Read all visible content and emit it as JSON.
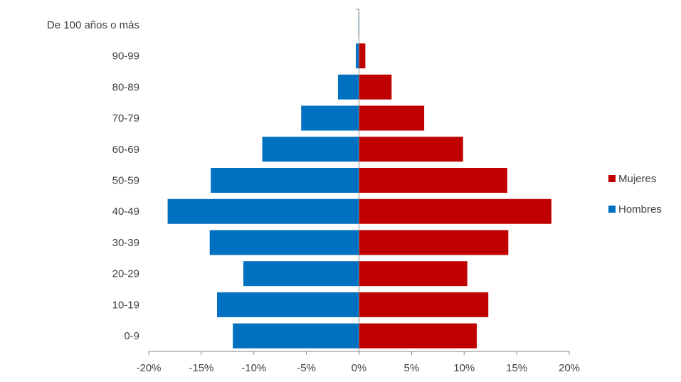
{
  "chart_data": {
    "type": "bar",
    "orientation": "horizontal",
    "stacked_diverging": true,
    "categories": [
      "0-9",
      "10-19",
      "20-29",
      "30-39",
      "40-49",
      "50-59",
      "60-69",
      "70-79",
      "80-89",
      "90-99",
      "De 100 años o más"
    ],
    "series": [
      {
        "name": "Mujeres",
        "color": "#c00000",
        "values": [
          11.2,
          12.3,
          10.3,
          14.2,
          18.3,
          14.1,
          9.9,
          6.2,
          3.1,
          0.6,
          0.0
        ]
      },
      {
        "name": "Hombres",
        "color": "#0070c0",
        "values": [
          -12.0,
          -13.5,
          -11.0,
          -14.2,
          -18.2,
          -14.1,
          -9.2,
          -5.5,
          -2.0,
          -0.3,
          -0.05
        ]
      }
    ],
    "xlim": [
      -20,
      20
    ],
    "xticks": [
      -20,
      -15,
      -10,
      -5,
      0,
      5,
      10,
      15,
      20
    ],
    "xtick_labels": [
      "-20%",
      "-15%",
      "-10%",
      "-5%",
      "0%",
      "5%",
      "10%",
      "15%",
      "20%"
    ],
    "grid": false,
    "legend_position": "right",
    "title": "",
    "xlabel": "",
    "ylabel": ""
  }
}
